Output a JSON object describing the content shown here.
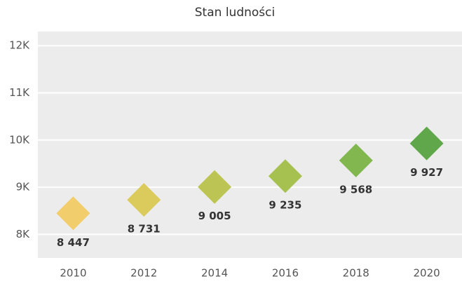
{
  "chart_data": {
    "type": "scatter",
    "title": "Stan ludności",
    "categories": [
      "2010",
      "2012",
      "2014",
      "2016",
      "2018",
      "2020"
    ],
    "values": [
      8447,
      8731,
      9005,
      9235,
      9568,
      9927
    ],
    "value_labels": [
      "8 447",
      "8 731",
      "9 005",
      "9 235",
      "9 568",
      "9 927"
    ],
    "colors": [
      "#f1cd6b",
      "#dacb5c",
      "#bcc553",
      "#a6c150",
      "#82b74f",
      "#5fa74a"
    ],
    "ylim": [
      7500,
      12300
    ],
    "yticks": [
      {
        "value": 8000,
        "label": "8K"
      },
      {
        "value": 9000,
        "label": "9K"
      },
      {
        "value": 10000,
        "label": "10K"
      },
      {
        "value": 11000,
        "label": "11K"
      },
      {
        "value": 12000,
        "label": "12K"
      }
    ],
    "grid": true
  }
}
